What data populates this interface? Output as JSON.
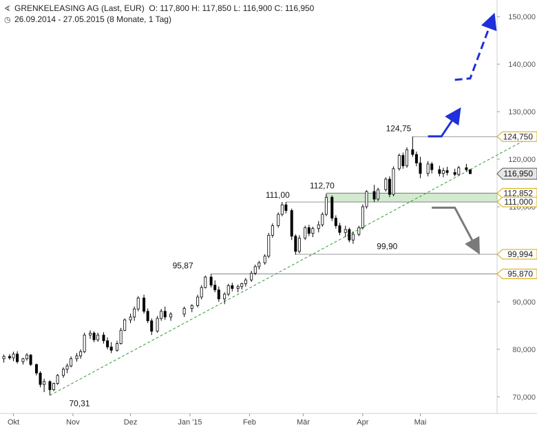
{
  "header": {
    "title": "GRENKELEASING AG (Last, EUR)",
    "ohlc": "O: 117,800   H: 117,850   L: 116,900   C: 116,950",
    "range": "26.09.2014 - 27.05.2015 (8 Monate, 1 Tag)",
    "chart_icon": "chart-icon",
    "clock_icon": "clock-icon"
  },
  "chart_data": {
    "type": "candlestick",
    "ylim": [
      66.5,
      153.5
    ],
    "y_ticks": [
      {
        "value": 70,
        "label": "70,000"
      },
      {
        "value": 80,
        "label": "80,000"
      },
      {
        "value": 90,
        "label": "90,000"
      },
      {
        "value": 110,
        "label": "110,000"
      },
      {
        "value": 120,
        "label": "120,000"
      },
      {
        "value": 130,
        "label": "130,000"
      },
      {
        "value": 140,
        "label": "140,000"
      },
      {
        "value": 150,
        "label": "150,000"
      }
    ],
    "x_ticks": [
      {
        "date": "2014-10-01",
        "label": "Okt"
      },
      {
        "date": "2014-11-01",
        "label": "Nov"
      },
      {
        "date": "2014-12-01",
        "label": "Dez"
      },
      {
        "date": "2015-01-01",
        "label": "Jan '15"
      },
      {
        "date": "2015-02-01",
        "label": "Feb"
      },
      {
        "date": "2015-03-01",
        "label": "Mär"
      },
      {
        "date": "2015-04-01",
        "label": "Apr"
      },
      {
        "date": "2015-05-01",
        "label": "Mai"
      }
    ],
    "ohlc": [
      [
        "2014-09-26",
        78.0,
        78.9,
        77.2,
        78.5
      ],
      [
        "2014-09-29",
        78.5,
        79.0,
        77.8,
        78.2
      ],
      [
        "2014-10-01",
        78.2,
        79.5,
        77.5,
        79.0
      ],
      [
        "2014-10-03",
        79.0,
        79.6,
        77.0,
        77.4
      ],
      [
        "2014-10-06",
        77.4,
        78.2,
        76.8,
        78.0
      ],
      [
        "2014-10-08",
        78.0,
        79.2,
        77.6,
        78.8
      ],
      [
        "2014-10-10",
        78.8,
        79.0,
        76.5,
        76.8
      ],
      [
        "2014-10-13",
        76.8,
        77.0,
        74.5,
        75.0
      ],
      [
        "2014-10-15",
        75.0,
        75.4,
        72.0,
        72.6
      ],
      [
        "2014-10-17",
        72.6,
        73.8,
        71.0,
        73.2
      ],
      [
        "2014-10-20",
        73.2,
        73.5,
        70.31,
        71.5
      ],
      [
        "2014-10-22",
        71.5,
        73.0,
        71.2,
        72.8
      ],
      [
        "2014-10-24",
        72.8,
        74.8,
        72.5,
        74.5
      ],
      [
        "2014-10-27",
        74.5,
        76.2,
        74.0,
        75.8
      ],
      [
        "2014-10-29",
        75.8,
        77.0,
        75.0,
        76.5
      ],
      [
        "2014-10-31",
        76.5,
        78.5,
        76.2,
        78.0
      ],
      [
        "2014-11-03",
        78.0,
        79.2,
        77.4,
        78.6
      ],
      [
        "2014-11-05",
        78.6,
        80.0,
        78.0,
        79.5
      ],
      [
        "2014-11-07",
        79.5,
        83.5,
        79.2,
        83.0
      ],
      [
        "2014-11-10",
        83.0,
        84.0,
        82.2,
        83.4
      ],
      [
        "2014-11-12",
        83.4,
        83.8,
        81.5,
        82.0
      ],
      [
        "2014-11-14",
        82.0,
        83.5,
        81.6,
        83.0
      ],
      [
        "2014-11-17",
        83.0,
        83.6,
        81.2,
        81.8
      ],
      [
        "2014-11-19",
        81.8,
        82.5,
        80.0,
        80.5
      ],
      [
        "2014-11-21",
        80.5,
        81.5,
        79.2,
        79.8
      ],
      [
        "2014-11-24",
        79.8,
        81.8,
        79.5,
        81.2
      ],
      [
        "2014-11-26",
        81.2,
        84.5,
        81.0,
        84.0
      ],
      [
        "2014-11-28",
        84.0,
        86.5,
        83.8,
        86.2
      ],
      [
        "2014-12-01",
        86.2,
        87.5,
        85.5,
        86.8
      ],
      [
        "2014-12-03",
        86.8,
        89.0,
        86.0,
        88.5
      ],
      [
        "2014-12-05",
        88.5,
        91.2,
        88.0,
        90.8
      ],
      [
        "2014-12-08",
        90.8,
        91.5,
        87.5,
        88.0
      ],
      [
        "2014-12-10",
        88.0,
        88.6,
        85.5,
        86.0
      ],
      [
        "2014-12-12",
        86.0,
        86.5,
        83.0,
        83.8
      ],
      [
        "2014-12-15",
        83.8,
        87.0,
        83.5,
        86.5
      ],
      [
        "2014-12-17",
        86.5,
        88.5,
        86.0,
        88.0
      ],
      [
        "2014-12-19",
        88.0,
        89.0,
        86.2,
        86.8
      ],
      [
        "2014-12-22",
        86.8,
        87.8,
        86.0,
        87.4
      ],
      [
        "2014-12-29",
        87.4,
        89.0,
        86.8,
        88.6
      ],
      [
        "2015-01-02",
        88.6,
        89.5,
        87.8,
        89.2
      ],
      [
        "2015-01-05",
        89.2,
        91.5,
        88.8,
        91.0
      ],
      [
        "2015-01-07",
        91.0,
        93.5,
        90.5,
        93.0
      ],
      [
        "2015-01-09",
        93.0,
        95.5,
        92.8,
        95.2
      ],
      [
        "2015-01-12",
        95.2,
        95.87,
        93.0,
        93.5
      ],
      [
        "2015-01-14",
        93.5,
        94.5,
        92.0,
        92.5
      ],
      [
        "2015-01-16",
        92.5,
        93.2,
        90.0,
        90.6
      ],
      [
        "2015-01-19",
        90.6,
        92.0,
        89.5,
        91.6
      ],
      [
        "2015-01-21",
        91.6,
        93.8,
        91.2,
        93.4
      ],
      [
        "2015-01-23",
        93.4,
        94.0,
        92.2,
        92.8
      ],
      [
        "2015-01-26",
        92.8,
        93.6,
        92.0,
        93.2
      ],
      [
        "2015-01-28",
        93.2,
        94.0,
        92.6,
        93.8
      ],
      [
        "2015-01-30",
        93.8,
        95.0,
        93.2,
        94.6
      ],
      [
        "2015-02-02",
        94.6,
        96.5,
        94.2,
        96.0
      ],
      [
        "2015-02-04",
        96.0,
        97.8,
        95.6,
        97.4
      ],
      [
        "2015-02-06",
        97.4,
        98.6,
        96.8,
        98.2
      ],
      [
        "2015-02-09",
        98.2,
        100.0,
        97.8,
        99.6
      ],
      [
        "2015-02-11",
        99.6,
        104.5,
        99.2,
        104.0
      ],
      [
        "2015-02-13",
        104.0,
        106.5,
        103.5,
        106.0
      ],
      [
        "2015-02-16",
        106.0,
        108.8,
        105.6,
        108.4
      ],
      [
        "2015-02-18",
        108.4,
        111.0,
        108.0,
        110.4
      ],
      [
        "2015-02-20",
        110.4,
        111.0,
        108.6,
        109.2
      ],
      [
        "2015-02-23",
        109.2,
        109.6,
        103.0,
        103.8
      ],
      [
        "2015-02-25",
        103.8,
        104.2,
        99.9,
        100.6
      ],
      [
        "2015-02-27",
        100.6,
        104.0,
        100.2,
        103.4
      ],
      [
        "2015-03-02",
        103.4,
        106.0,
        103.0,
        105.6
      ],
      [
        "2015-03-04",
        105.6,
        106.2,
        103.8,
        104.4
      ],
      [
        "2015-03-06",
        104.4,
        105.8,
        103.6,
        105.4
      ],
      [
        "2015-03-09",
        105.4,
        107.0,
        104.6,
        106.2
      ],
      [
        "2015-03-11",
        106.2,
        108.8,
        105.8,
        108.4
      ],
      [
        "2015-03-13",
        108.4,
        112.7,
        108.0,
        112.0
      ],
      [
        "2015-03-16",
        112.0,
        112.4,
        107.0,
        107.6
      ],
      [
        "2015-03-18",
        107.6,
        108.2,
        105.4,
        106.0
      ],
      [
        "2015-03-20",
        106.0,
        106.6,
        104.0,
        104.6
      ],
      [
        "2015-03-23",
        104.6,
        106.0,
        103.6,
        105.2
      ],
      [
        "2015-03-25",
        105.2,
        105.6,
        102.5,
        103.0
      ],
      [
        "2015-03-27",
        103.0,
        104.8,
        102.2,
        104.2
      ],
      [
        "2015-03-30",
        104.2,
        106.0,
        103.8,
        105.6
      ],
      [
        "2015-04-01",
        105.6,
        110.5,
        105.2,
        110.0
      ],
      [
        "2015-04-03",
        110.0,
        113.5,
        109.6,
        113.2
      ],
      [
        "2015-04-07",
        113.2,
        114.6,
        111.0,
        111.6
      ],
      [
        "2015-04-09",
        111.6,
        114.0,
        111.2,
        113.6
      ],
      [
        "2015-04-13",
        113.6,
        116.2,
        113.2,
        115.8
      ],
      [
        "2015-04-15",
        115.8,
        116.4,
        112.0,
        112.6
      ],
      [
        "2015-04-17",
        112.6,
        118.5,
        112.2,
        118.0
      ],
      [
        "2015-04-20",
        118.0,
        121.2,
        117.6,
        120.8
      ],
      [
        "2015-04-22",
        120.8,
        121.4,
        118.0,
        118.6
      ],
      [
        "2015-04-24",
        118.6,
        122.5,
        118.2,
        122.0
      ],
      [
        "2015-04-27",
        122.0,
        124.75,
        120.5,
        121.0
      ],
      [
        "2015-04-29",
        121.0,
        121.6,
        118.5,
        119.2
      ],
      [
        "2015-05-01",
        119.2,
        120.5,
        116.0,
        117.0
      ],
      [
        "2015-05-05",
        117.0,
        119.6,
        116.4,
        119.0
      ],
      [
        "2015-05-07",
        119.0,
        119.4,
        117.0,
        117.8
      ],
      [
        "2015-05-11",
        117.8,
        118.6,
        116.4,
        117.0
      ],
      [
        "2015-05-13",
        117.0,
        118.2,
        116.2,
        117.6
      ],
      [
        "2015-05-15",
        117.6,
        118.4,
        116.6,
        117.2
      ],
      [
        "2015-05-19",
        117.2,
        118.0,
        116.4,
        116.8
      ],
      [
        "2015-05-21",
        116.8,
        118.6,
        116.6,
        118.2
      ],
      [
        "2015-05-25",
        118.2,
        119.0,
        117.4,
        117.8
      ],
      [
        "2015-05-27",
        117.8,
        117.85,
        116.9,
        116.95
      ]
    ],
    "annotations": [
      {
        "date": "2014-10-20",
        "value": 70.31,
        "label": "70,31"
      },
      {
        "date": "2015-01-12",
        "value": 95.87,
        "label": "95,87"
      },
      {
        "date": "2015-02-20",
        "value": 111.0,
        "label": "111,00"
      },
      {
        "date": "2015-03-13",
        "value": 112.7,
        "label": "112,70"
      },
      {
        "date": "2015-02-25",
        "value": 99.9,
        "label": "99,90"
      },
      {
        "date": "2015-04-27",
        "value": 124.75,
        "label": "124,75"
      }
    ],
    "levels": [
      {
        "value": 124.75,
        "label": "124,750",
        "from": "2015-04-27",
        "color": "#d4a600"
      },
      {
        "value": 112.852,
        "label": "112,852",
        "from": "2015-03-13",
        "color": "#d4a600"
      },
      {
        "value": 111.0,
        "label": "111,000",
        "from": "2015-02-20",
        "color": "#d4a600"
      },
      {
        "value": 99.994,
        "label": "99,994",
        "from": "2015-02-25",
        "color": "#d4a600"
      },
      {
        "value": 95.87,
        "label": "95,870",
        "from": "2015-01-12",
        "color": "#d4a600"
      }
    ],
    "current_price": {
      "value": 116.95,
      "label": "116,950"
    },
    "support_zone": {
      "from": "2015-03-13",
      "low": 111.0,
      "high": 112.852,
      "color": "#cfe8cc"
    },
    "trendline": {
      "from_date": "2014-10-20",
      "from_value": 70.31,
      "to_date": "2015-05-25",
      "to_value": 117.4,
      "extend": true,
      "color": "#2e9a2e",
      "style": "dashed"
    },
    "bull_scenario": {
      "color": "#1f2fd9",
      "points": [
        [
          "2015-05-05",
          124.8
        ],
        [
          "2015-05-12",
          124.8
        ],
        [
          "2015-05-21",
          130.2
        ]
      ],
      "dashed_points": [
        [
          "2015-05-19",
          136.7
        ],
        [
          "2015-05-27",
          137.0
        ],
        [
          "2015-06-08",
          150.0
        ]
      ]
    },
    "bear_scenario": {
      "color": "#7a7a7a",
      "points": [
        [
          "2015-05-07",
          109.8
        ],
        [
          "2015-05-19",
          109.8
        ],
        [
          "2015-05-31",
          100.7
        ]
      ]
    },
    "grid": false
  }
}
